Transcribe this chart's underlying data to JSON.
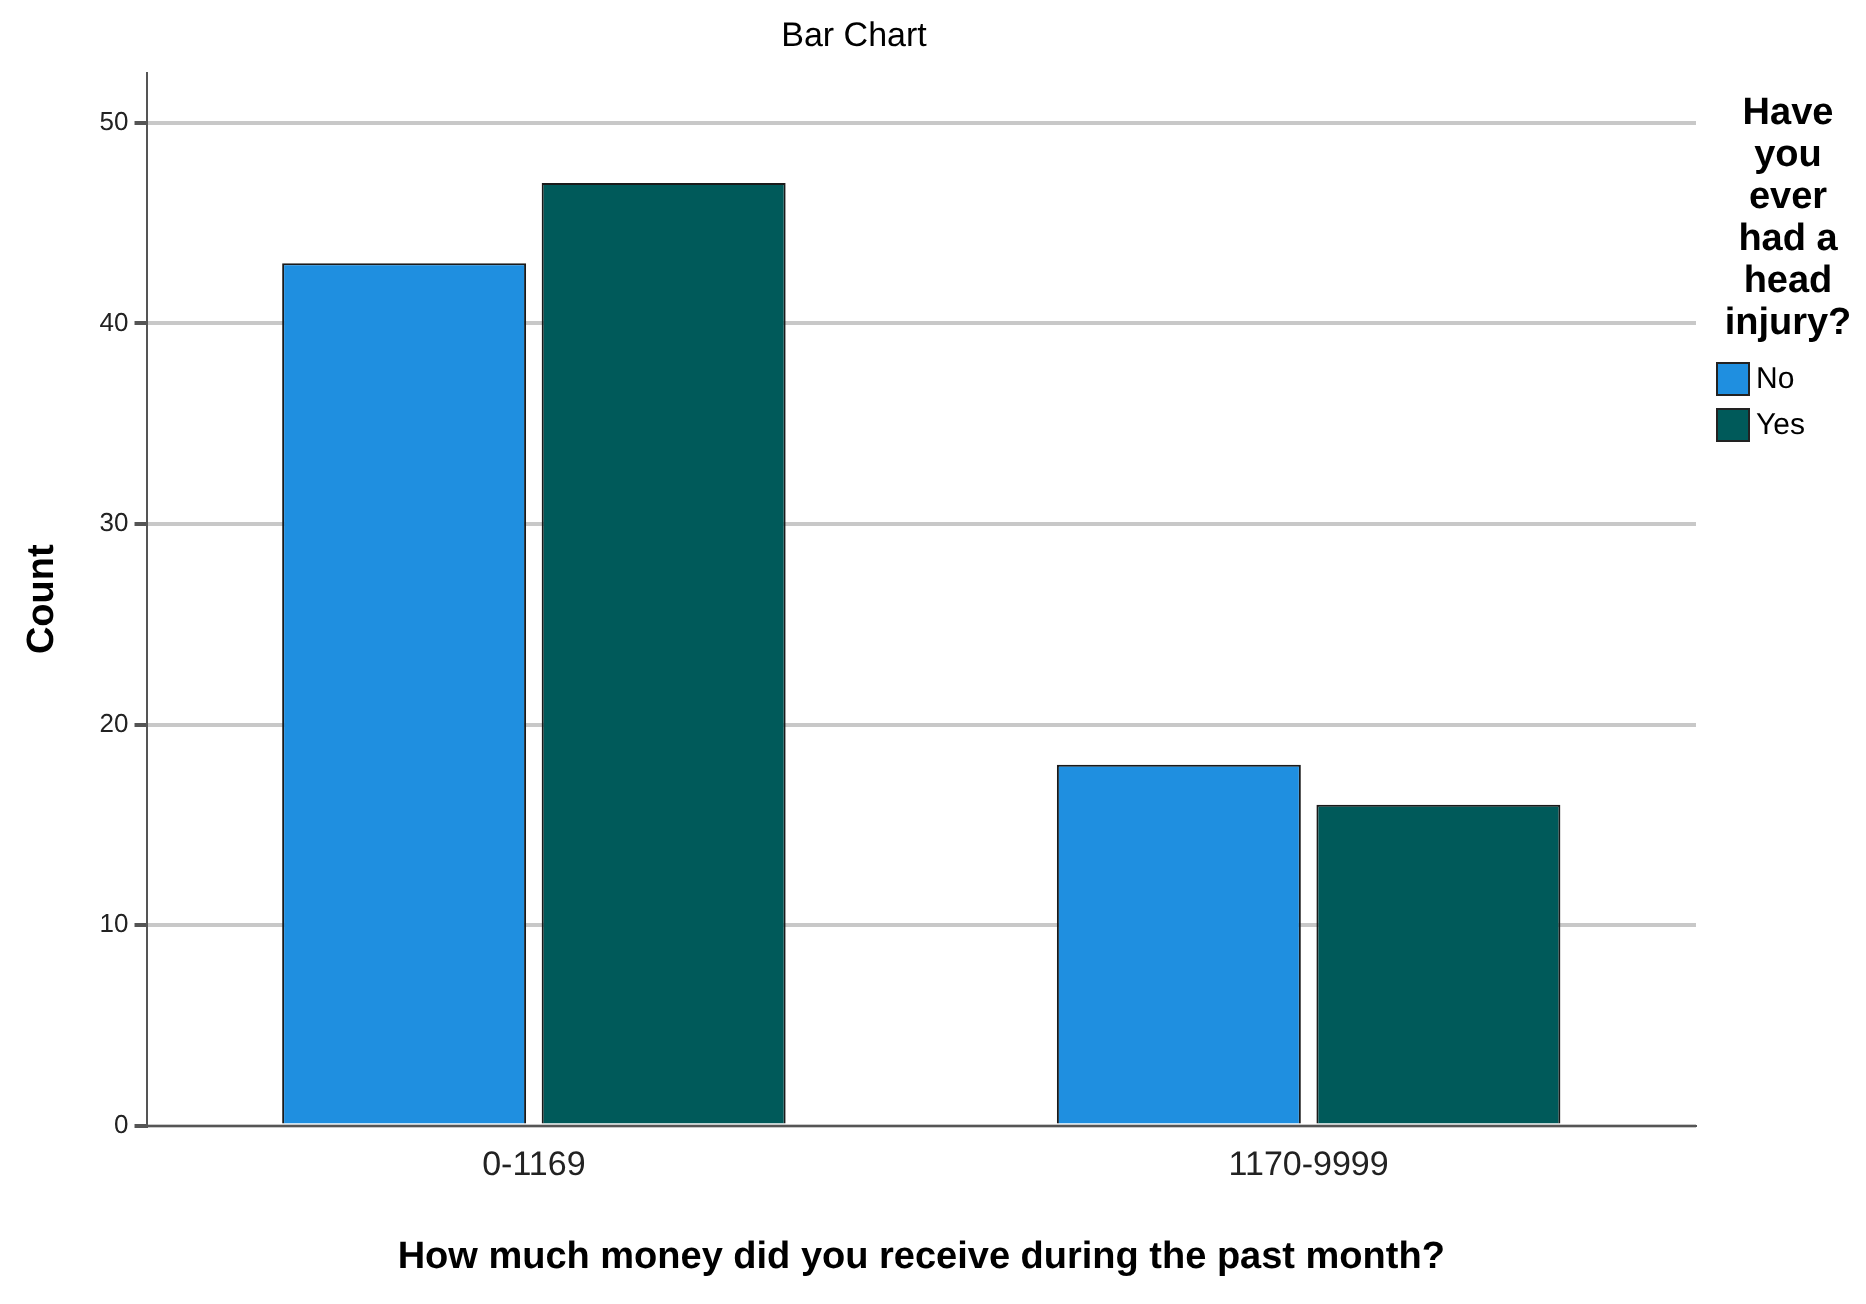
{
  "chart_data": {
    "type": "bar",
    "title": "Bar Chart",
    "xlabel": "How much money did you receive during the past month?",
    "ylabel": "Count",
    "legend_title": "Have you ever had a head injury?",
    "categories": [
      "0-1169",
      "1170-9999"
    ],
    "series": [
      {
        "name": "No",
        "color": "#1f8fe0",
        "values": [
          43,
          18
        ]
      },
      {
        "name": "Yes",
        "color": "#005a5a",
        "values": [
          47,
          16
        ]
      }
    ],
    "ylim": [
      0,
      52.5
    ],
    "yticks": [
      0,
      10,
      20,
      30,
      40,
      50
    ],
    "grid": "y",
    "legend": "right"
  }
}
